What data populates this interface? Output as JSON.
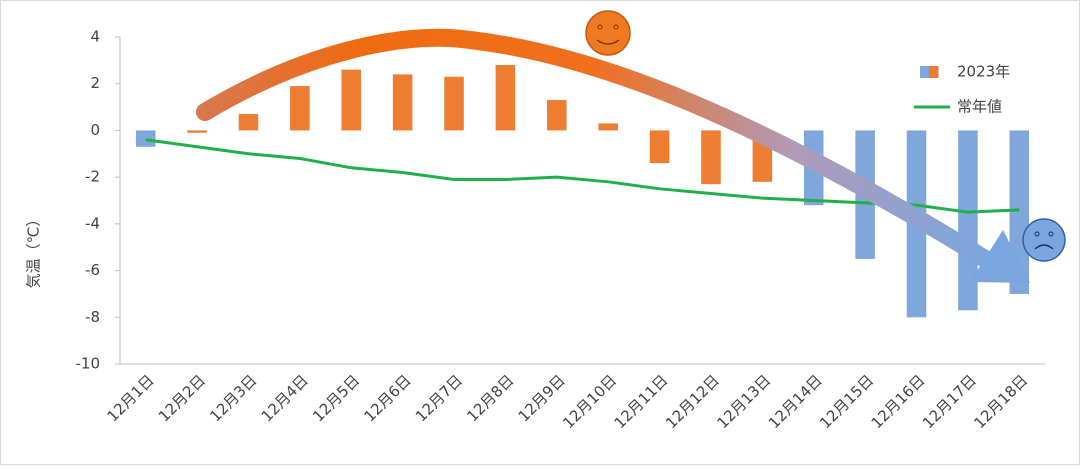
{
  "chart_data": {
    "type": "bar",
    "y_label": "気温（℃）",
    "categories": [
      "12月1日",
      "12月2日",
      "12月3日",
      "12月4日",
      "12月5日",
      "12月6日",
      "12月7日",
      "12月8日",
      "12月9日",
      "12月10日",
      "12月11日",
      "12月12日",
      "12月13日",
      "12月14日",
      "12月15日",
      "12月16日",
      "12月17日",
      "12月18日"
    ],
    "series": [
      {
        "name": "2023年",
        "type": "bar",
        "color": "#ed7d31",
        "colors": [
          "#7fa7dc",
          "#ed7d31",
          "#ed7d31",
          "#ed7d31",
          "#ed7d31",
          "#ed7d31",
          "#ed7d31",
          "#ed7d31",
          "#ed7d31",
          "#ed7d31",
          "#ed7d31",
          "#ed7d31",
          "#ed7d31",
          "#7fa7dc",
          "#7fa7dc",
          "#7fa7dc",
          "#7fa7dc",
          "#7fa7dc"
        ],
        "values": [
          -0.7,
          -0.1,
          0.7,
          1.9,
          2.6,
          2.4,
          2.3,
          2.8,
          1.3,
          0.3,
          -1.4,
          -2.3,
          -2.2,
          -3.2,
          -5.5,
          -8.0,
          -7.7,
          -7.0
        ]
      },
      {
        "name": "常年値",
        "type": "line",
        "color": "#1fb04a",
        "values": [
          -0.4,
          -0.7,
          -1.0,
          -1.2,
          -1.6,
          -1.8,
          -2.1,
          -2.1,
          -2.0,
          -2.2,
          -2.5,
          -2.7,
          -2.9,
          -3.0,
          -3.1,
          -3.2,
          -3.5,
          -3.4
        ]
      }
    ],
    "ylim": [
      -10,
      4
    ],
    "yticks": [
      -10,
      -8,
      -6,
      -4,
      -2,
      0,
      2,
      4
    ],
    "grid": false,
    "legend": "right"
  }
}
